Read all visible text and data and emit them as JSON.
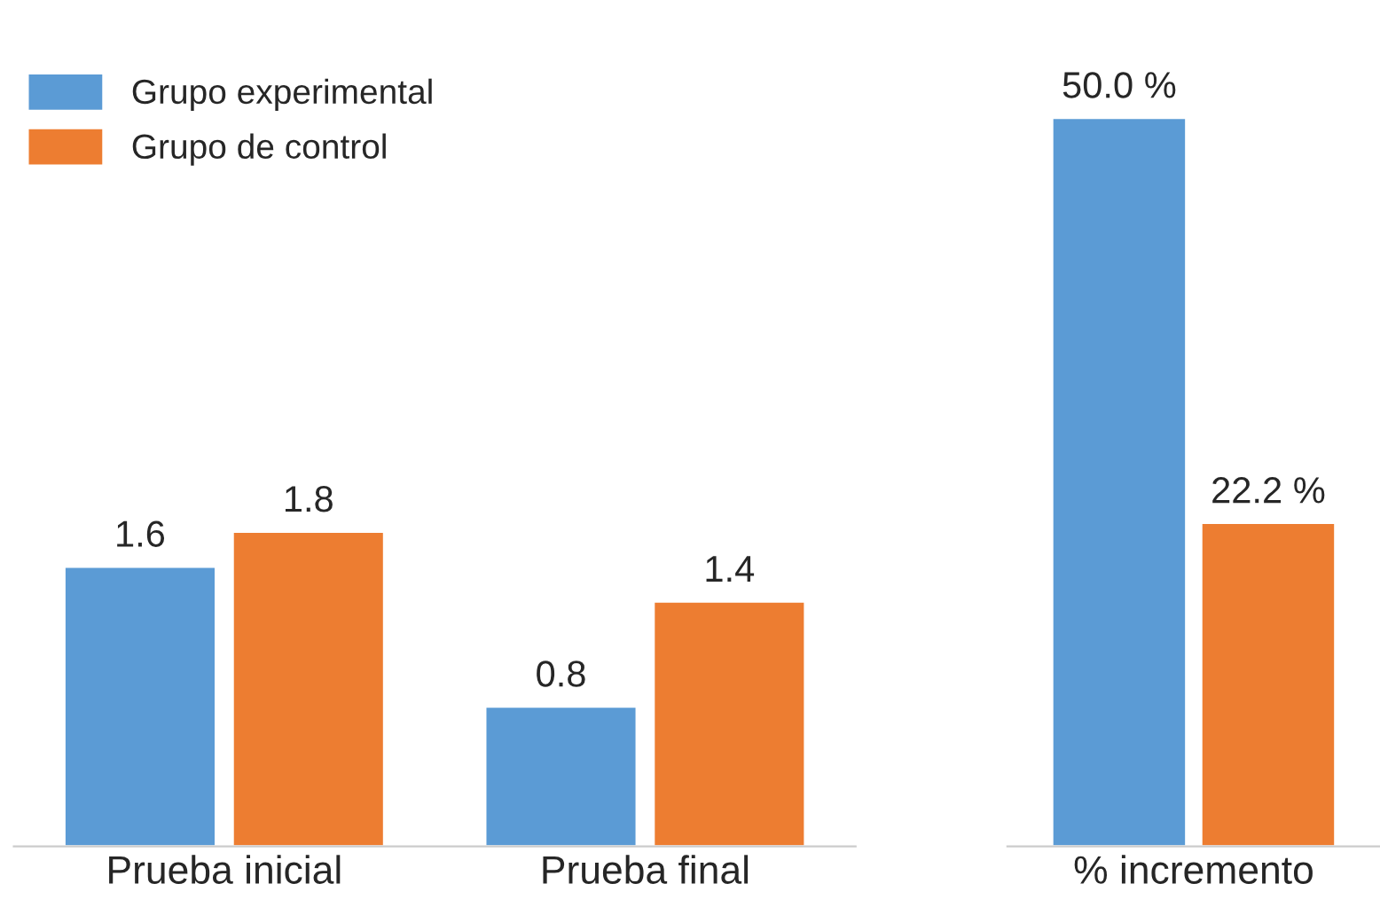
{
  "chart_data": [
    {
      "type": "bar",
      "categories": [
        "Prueba inicial",
        "Prueba final"
      ],
      "data_labels": true,
      "legend": "top left",
      "series": [
        {
          "name": "Grupo experimental",
          "color": "#5b9bd5",
          "values": [
            1.6,
            0.8
          ]
        },
        {
          "name": "Grupo de control",
          "color": "#ed7d31",
          "values": [
            1.8,
            1.4
          ]
        }
      ]
    },
    {
      "type": "bar",
      "categories": [
        "% incremento"
      ],
      "series": [
        {
          "color": "#5b9bd5",
          "values": [
            50.0
          ],
          "value_labels": [
            "50.0 %"
          ]
        },
        {
          "color": "#ed7d31",
          "values": [
            22.2
          ],
          "value_labels": [
            "22.2 %"
          ]
        }
      ]
    }
  ]
}
